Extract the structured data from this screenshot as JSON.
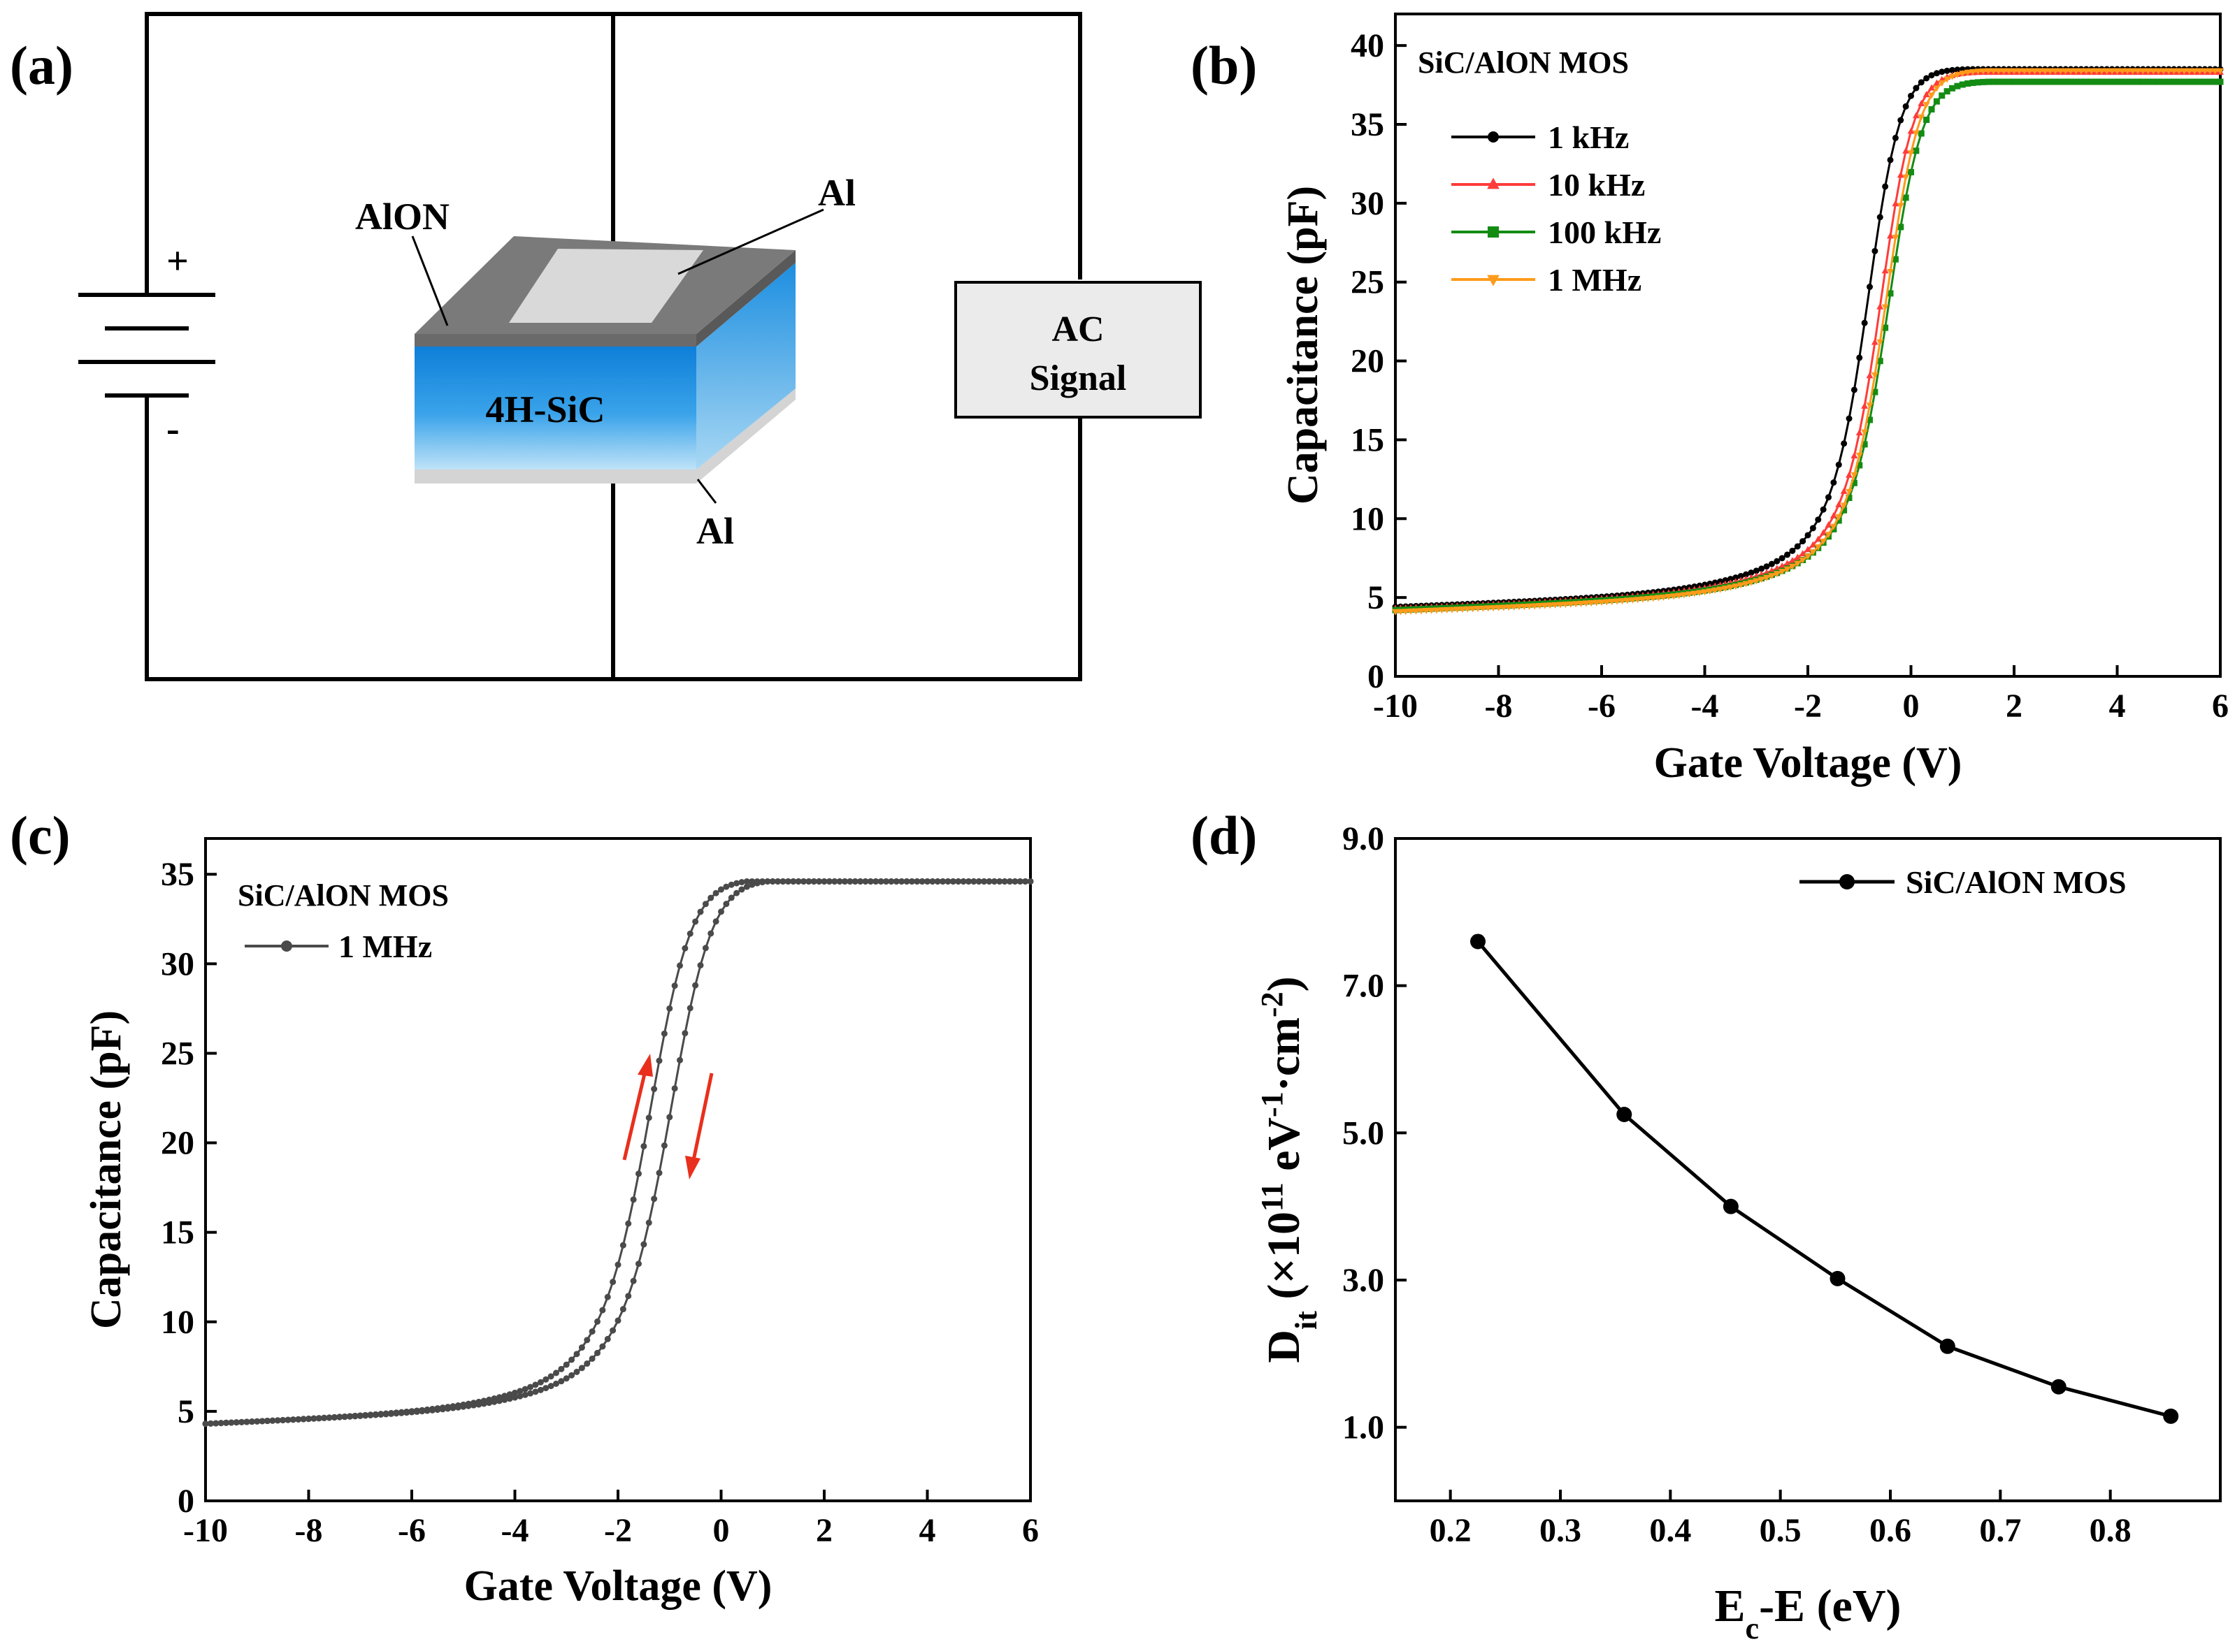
{
  "panels": {
    "a": {
      "label": "(a)",
      "aion_label": "AlON",
      "al_top_label": "Al",
      "sic_label": "4H-SiC",
      "al_bottom_label": "Al",
      "plus_label": "+",
      "minus_label": "-",
      "ac_line1": "AC",
      "ac_line2": "Signal"
    },
    "b": {
      "label": "(b)"
    },
    "c": {
      "label": "(c)"
    },
    "d": {
      "label": "(d)"
    }
  },
  "colors": {
    "black": "#000000",
    "red": "#ff3b3b",
    "green": "#148c14",
    "orange": "#ff9a1a",
    "gray_series": "#4a4a4a",
    "arrow_red": "#e8301c",
    "sic_blue": "#1f8fe0",
    "aion_gray": "#6e6e6e",
    "al_light": "#d9d9d9"
  },
  "chart_data": [
    {
      "panel": "b",
      "type": "line",
      "title": "SiC/AlON MOS",
      "xlabel": "Gate Voltage (V)",
      "ylabel": "Capacitance (pF)",
      "xlim": [
        -10,
        6
      ],
      "ylim": [
        0,
        42
      ],
      "xticks": [
        -10,
        -8,
        -6,
        -4,
        -2,
        0,
        2,
        4,
        6
      ],
      "yticks": [
        0,
        5,
        10,
        15,
        20,
        25,
        30,
        35,
        40
      ],
      "legend_position": "top-left",
      "series": [
        {
          "name": "1 kHz",
          "color": "#000000",
          "marker": "circle",
          "cmin": 4.4,
          "cmax": 38.5,
          "vfb": -0.75,
          "width": 0.32
        },
        {
          "name": "10 kHz",
          "color": "#ff3b3b",
          "marker": "triangle-up",
          "cmin": 4.3,
          "cmax": 38.3,
          "vfb": -0.5,
          "width": 0.32
        },
        {
          "name": "100 kHz",
          "color": "#148c14",
          "marker": "square",
          "cmin": 4.2,
          "cmax": 37.7,
          "vfb": -0.35,
          "width": 0.33
        },
        {
          "name": "1 MHz",
          "color": "#ff9a1a",
          "marker": "triangle-down",
          "cmin": 4.1,
          "cmax": 38.4,
          "vfb": -0.4,
          "width": 0.33
        }
      ]
    },
    {
      "panel": "c",
      "type": "line",
      "title": "SiC/AlON MOS",
      "xlabel": "Gate Voltage (V)",
      "ylabel": "Capacitance (pF)",
      "xlim": [
        -10,
        6
      ],
      "ylim": [
        0,
        37
      ],
      "xticks": [
        -10,
        -8,
        -6,
        -4,
        -2,
        0,
        2,
        4,
        6
      ],
      "yticks": [
        0,
        5,
        10,
        15,
        20,
        25,
        30,
        35
      ],
      "legend_position": "top-left",
      "series": [
        {
          "name": "1 MHz",
          "color": "#4a4a4a",
          "marker": "circle",
          "cmin": 4.3,
          "cmax": 34.6,
          "vfb_forward": -1.25,
          "vfb_reverse": -0.85,
          "width": 0.42
        }
      ]
    },
    {
      "panel": "d",
      "type": "line",
      "xlabel": "Ec-E (eV)",
      "ylabel": "Dit (×1011 eV-1·cm-2)",
      "xlim": [
        0.15,
        0.9
      ],
      "ylim": [
        0,
        9
      ],
      "xticks": [
        0.2,
        0.3,
        0.4,
        0.5,
        0.6,
        0.7,
        0.8
      ],
      "yticks": [
        1.0,
        3.0,
        5.0,
        7.0,
        9.0
      ],
      "legend_position": "top-right",
      "series": [
        {
          "name": "SiC/AlON MOS",
          "color": "#000000",
          "marker": "circle",
          "x": [
            0.225,
            0.358,
            0.455,
            0.552,
            0.652,
            0.753,
            0.855
          ],
          "y": [
            7.6,
            5.25,
            4.0,
            3.02,
            2.1,
            1.55,
            1.15
          ]
        }
      ]
    }
  ]
}
